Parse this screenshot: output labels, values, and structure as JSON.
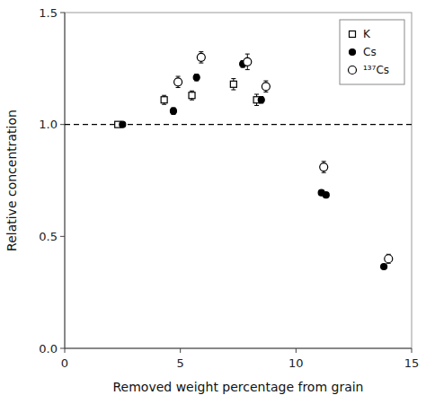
{
  "chart_data": {
    "type": "scatter",
    "xlabel": "Removed weight percentage from grain",
    "ylabel": "Relative concentration",
    "xlim": [
      0,
      15
    ],
    "ylim": [
      0.0,
      1.5
    ],
    "xticks": [
      0,
      5,
      10,
      15
    ],
    "yticks": [
      {
        "value": 0.0,
        "label": "0.0"
      },
      {
        "value": 0.5,
        "label": "0.5"
      },
      {
        "value": 1.0,
        "label": "1.0"
      },
      {
        "value": 1.5,
        "label": "1.5"
      }
    ],
    "grid": false,
    "legend": "upper right",
    "hlines": [
      {
        "value": 1.0,
        "line_style": "dashed",
        "color": "#000000"
      }
    ],
    "series": [
      {
        "name": "K",
        "color": "#000000",
        "marker": "open-square",
        "x": [
          2.3,
          4.3,
          5.5,
          7.3,
          8.3
        ],
        "values": [
          1.0,
          1.11,
          1.13,
          1.18,
          1.11
        ],
        "yerr": [
          0.005,
          0.02,
          0.02,
          0.025,
          0.025
        ]
      },
      {
        "name": "Cs",
        "color": "#000000",
        "marker": "filled-circle",
        "x": [
          2.5,
          4.7,
          5.7,
          7.7,
          8.5,
          11.1,
          11.3,
          13.8
        ],
        "values": [
          1.0,
          1.06,
          1.21,
          1.27,
          1.11,
          0.695,
          0.685,
          0.365
        ],
        "yerr": [
          0.005,
          0.015,
          0.015,
          0.015,
          0.015,
          0.01,
          0.01,
          0.01
        ]
      },
      {
        "name": "¹³⁷Cs",
        "color": "#000000",
        "marker": "open-circle",
        "x": [
          4.9,
          5.9,
          7.9,
          8.7,
          11.2,
          14.0
        ],
        "values": [
          1.19,
          1.3,
          1.28,
          1.17,
          0.81,
          0.4
        ],
        "yerr": [
          0.025,
          0.025,
          0.035,
          0.025,
          0.025,
          0.02
        ]
      }
    ]
  }
}
